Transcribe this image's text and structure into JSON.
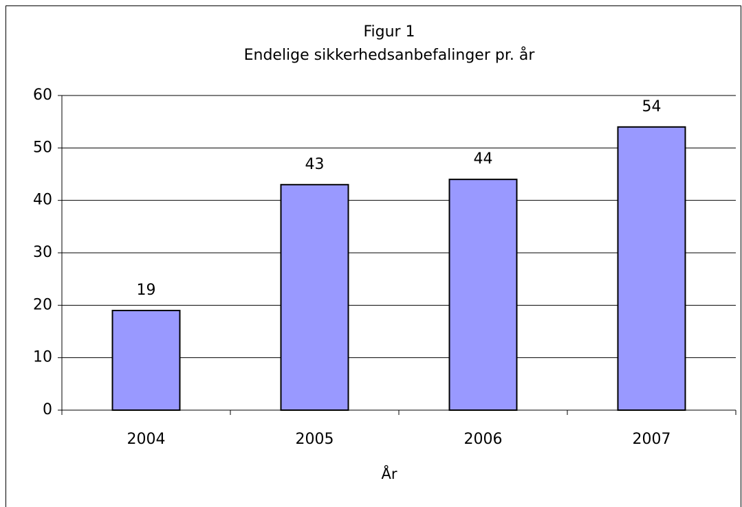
{
  "chart_data": {
    "type": "bar",
    "title": "Figur 1",
    "subtitle": "Endelige sikkerhedsanbefalinger pr. år",
    "x_label": "År",
    "categories": [
      "2004",
      "2005",
      "2006",
      "2007"
    ],
    "values": [
      19,
      43,
      44,
      54
    ],
    "color": "#9999ff",
    "ylim": [
      0,
      60
    ],
    "yticks": [
      0,
      10,
      20,
      30,
      40,
      50,
      60
    ],
    "grid": true
  }
}
